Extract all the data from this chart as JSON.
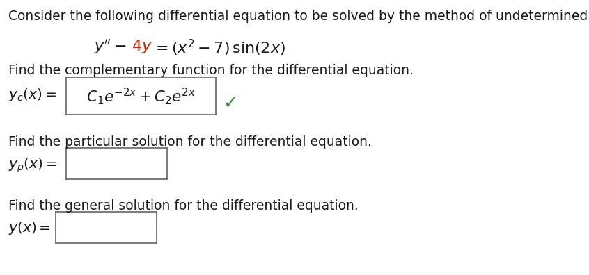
{
  "bg_color": "#ffffff",
  "black": "#1a1a1a",
  "red": "#cc2200",
  "green": "#3a8a3a",
  "navy": "#1a1a2e",
  "line1": "Consider the following differential equation to be solved by the method of undetermined coefficients.",
  "line3": "Find the complementary function for the differential equation.",
  "line5": "Find the particular solution for the differential equation.",
  "line7": "Find the general solution for the differential equation.",
  "font_size_text": 13.5,
  "font_size_math": 14.5,
  "fig_width": 8.46,
  "fig_height": 3.96,
  "dpi": 100
}
